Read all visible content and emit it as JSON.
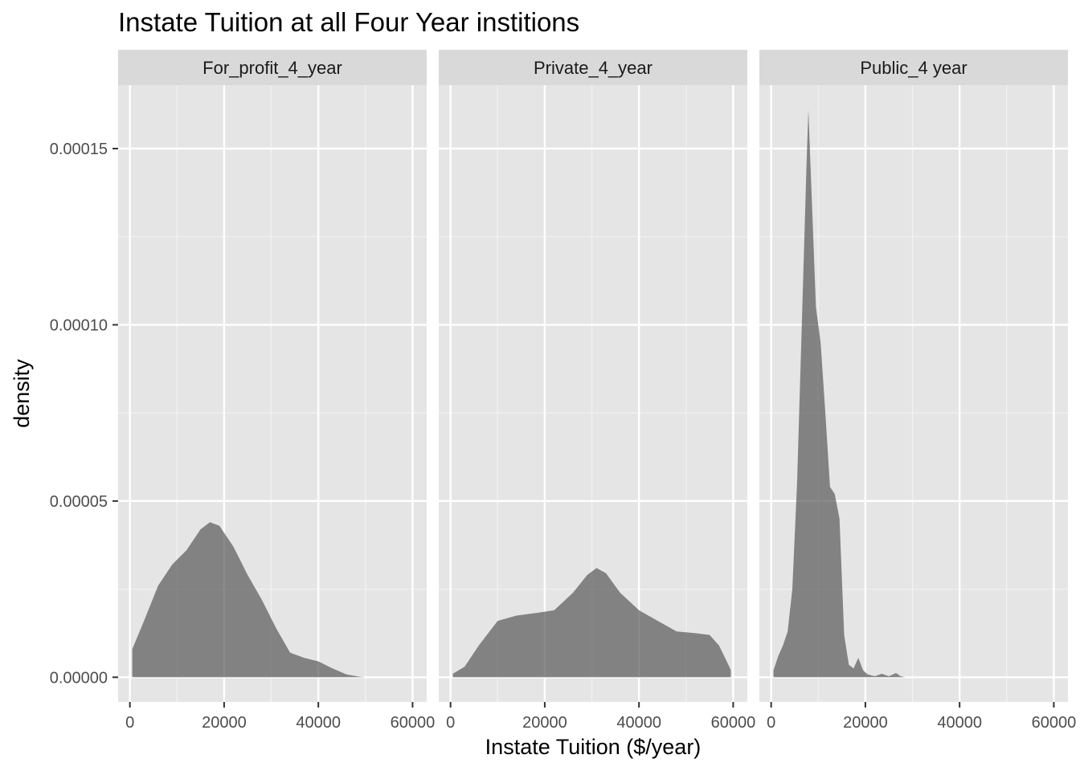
{
  "chart_data": {
    "type": "area",
    "title": "Instate Tuition at all Four Year institions",
    "xlabel": "Instate Tuition ($/year)",
    "ylabel": "density",
    "xlim": [
      -2500,
      63000
    ],
    "ylim": [
      -7e-06,
      0.000168
    ],
    "x_ticks": [
      0,
      20000,
      40000,
      60000
    ],
    "x_tick_labels": [
      "0",
      "20000",
      "40000",
      "60000"
    ],
    "y_ticks": [
      0,
      5e-05,
      0.0001,
      0.00015
    ],
    "y_tick_labels": [
      "0.00000",
      "0.00005",
      "0.00010",
      "0.00015"
    ],
    "grid": true,
    "fill_color": "#595959",
    "panel_background": "#e5e5e5",
    "strip_background": "#d9d9d9",
    "facets": [
      {
        "name": "For_profit_4_year",
        "points": [
          [
            500,
            0
          ],
          [
            500,
            8e-06
          ],
          [
            3000,
            1.6e-05
          ],
          [
            6000,
            2.6e-05
          ],
          [
            9000,
            3.2e-05
          ],
          [
            12000,
            3.6e-05
          ],
          [
            15000,
            4.2e-05
          ],
          [
            17000,
            4.4e-05
          ],
          [
            19000,
            4.3e-05
          ],
          [
            22000,
            3.7e-05
          ],
          [
            25000,
            2.9e-05
          ],
          [
            28000,
            2.2e-05
          ],
          [
            31000,
            1.4e-05
          ],
          [
            34000,
            7e-06
          ],
          [
            37000,
            5.5e-06
          ],
          [
            40000,
            4.5e-06
          ],
          [
            43000,
            2.5e-06
          ],
          [
            46000,
            8e-07
          ],
          [
            48500,
            2e-07
          ],
          [
            50000,
            0
          ]
        ]
      },
      {
        "name": "Private_4_year",
        "points": [
          [
            500,
            0
          ],
          [
            500,
            1e-06
          ],
          [
            3000,
            3e-06
          ],
          [
            6000,
            9e-06
          ],
          [
            10000,
            1.6e-05
          ],
          [
            14000,
            1.75e-05
          ],
          [
            18000,
            1.82e-05
          ],
          [
            22000,
            1.9e-05
          ],
          [
            26000,
            2.4e-05
          ],
          [
            29000,
            2.9e-05
          ],
          [
            31000,
            3.1e-05
          ],
          [
            33000,
            2.95e-05
          ],
          [
            36000,
            2.4e-05
          ],
          [
            40000,
            1.9e-05
          ],
          [
            44000,
            1.6e-05
          ],
          [
            48000,
            1.3e-05
          ],
          [
            52000,
            1.25e-05
          ],
          [
            55000,
            1.2e-05
          ],
          [
            57000,
            9e-06
          ],
          [
            59000,
            3.5e-06
          ],
          [
            59500,
            2e-06
          ],
          [
            59500,
            0
          ]
        ]
      },
      {
        "name": "Public_4 year",
        "points": [
          [
            500,
            0
          ],
          [
            500,
            2e-06
          ],
          [
            1500,
            6e-06
          ],
          [
            2500,
            9e-06
          ],
          [
            3500,
            1.3e-05
          ],
          [
            4500,
            2.5e-05
          ],
          [
            5500,
            5.5e-05
          ],
          [
            6500,
            0.0001
          ],
          [
            7500,
            0.000145
          ],
          [
            7900,
            0.000161
          ],
          [
            8500,
            0.00014
          ],
          [
            9500,
            0.000105
          ],
          [
            10500,
            9.5e-05
          ],
          [
            11500,
            7.5e-05
          ],
          [
            12500,
            5.4e-05
          ],
          [
            13500,
            5.2e-05
          ],
          [
            14500,
            4.5e-05
          ],
          [
            15500,
            1.2e-05
          ],
          [
            16500,
            3.5e-06
          ],
          [
            17500,
            2.5e-06
          ],
          [
            18500,
            5.5e-06
          ],
          [
            19500,
            2e-06
          ],
          [
            20500,
            8e-07
          ],
          [
            22000,
            3e-07
          ],
          [
            23500,
            1e-06
          ],
          [
            25000,
            3e-07
          ],
          [
            26500,
            1.2e-06
          ],
          [
            27500,
            3e-07
          ],
          [
            28500,
            0
          ]
        ]
      }
    ]
  }
}
